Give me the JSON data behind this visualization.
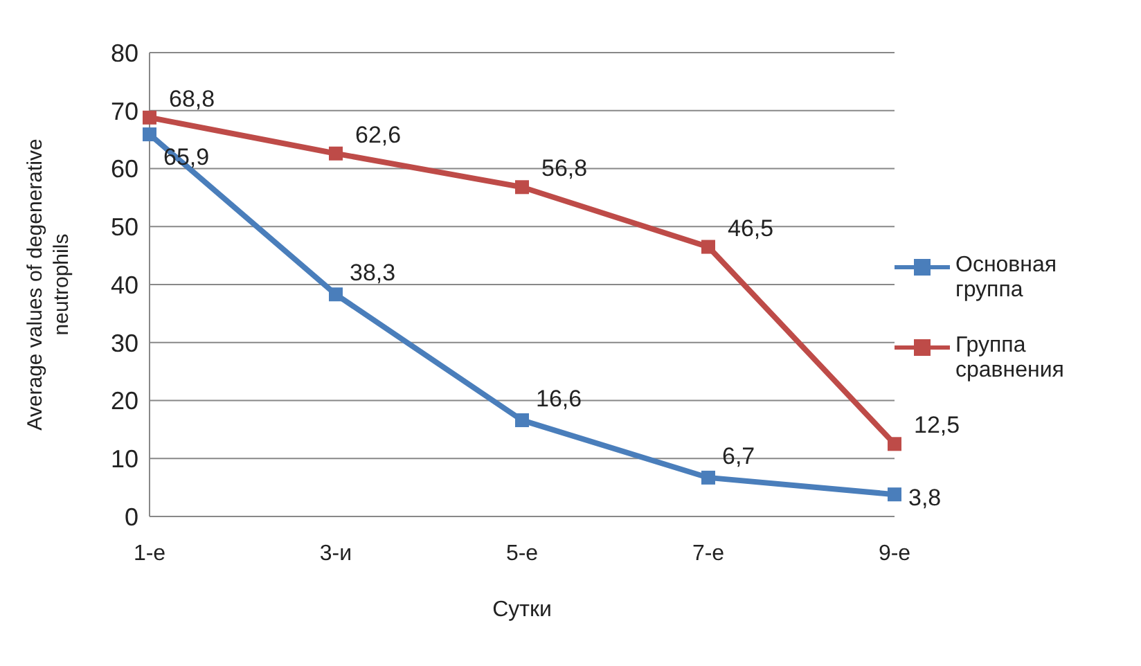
{
  "chart_data": {
    "type": "line",
    "xlabel": "Сутки",
    "ylabel": "Average values of degenerative neutrophils",
    "categories": [
      "1-е",
      "3-и",
      "5-е",
      "7-е",
      "9-е"
    ],
    "series": [
      {
        "name": "Основная группа",
        "color": "#4a7ebb",
        "values": [
          65.9,
          38.3,
          16.6,
          6.7,
          3.8
        ],
        "value_labels": [
          "65,9",
          "38,3",
          "16,6",
          "6,7",
          "3,8"
        ]
      },
      {
        "name": "Группа сравнения",
        "color": "#be4b48",
        "values": [
          68.8,
          62.6,
          56.8,
          46.5,
          12.5
        ],
        "value_labels": [
          "68,8",
          "62,6",
          "56,8",
          "46,5",
          "12,5"
        ]
      }
    ],
    "ylim": [
      0,
      80
    ],
    "yticks": [
      0,
      10,
      20,
      30,
      40,
      50,
      60,
      70,
      80
    ],
    "grid": "y",
    "legend": "right",
    "marker": "square",
    "line_style": "solid"
  }
}
